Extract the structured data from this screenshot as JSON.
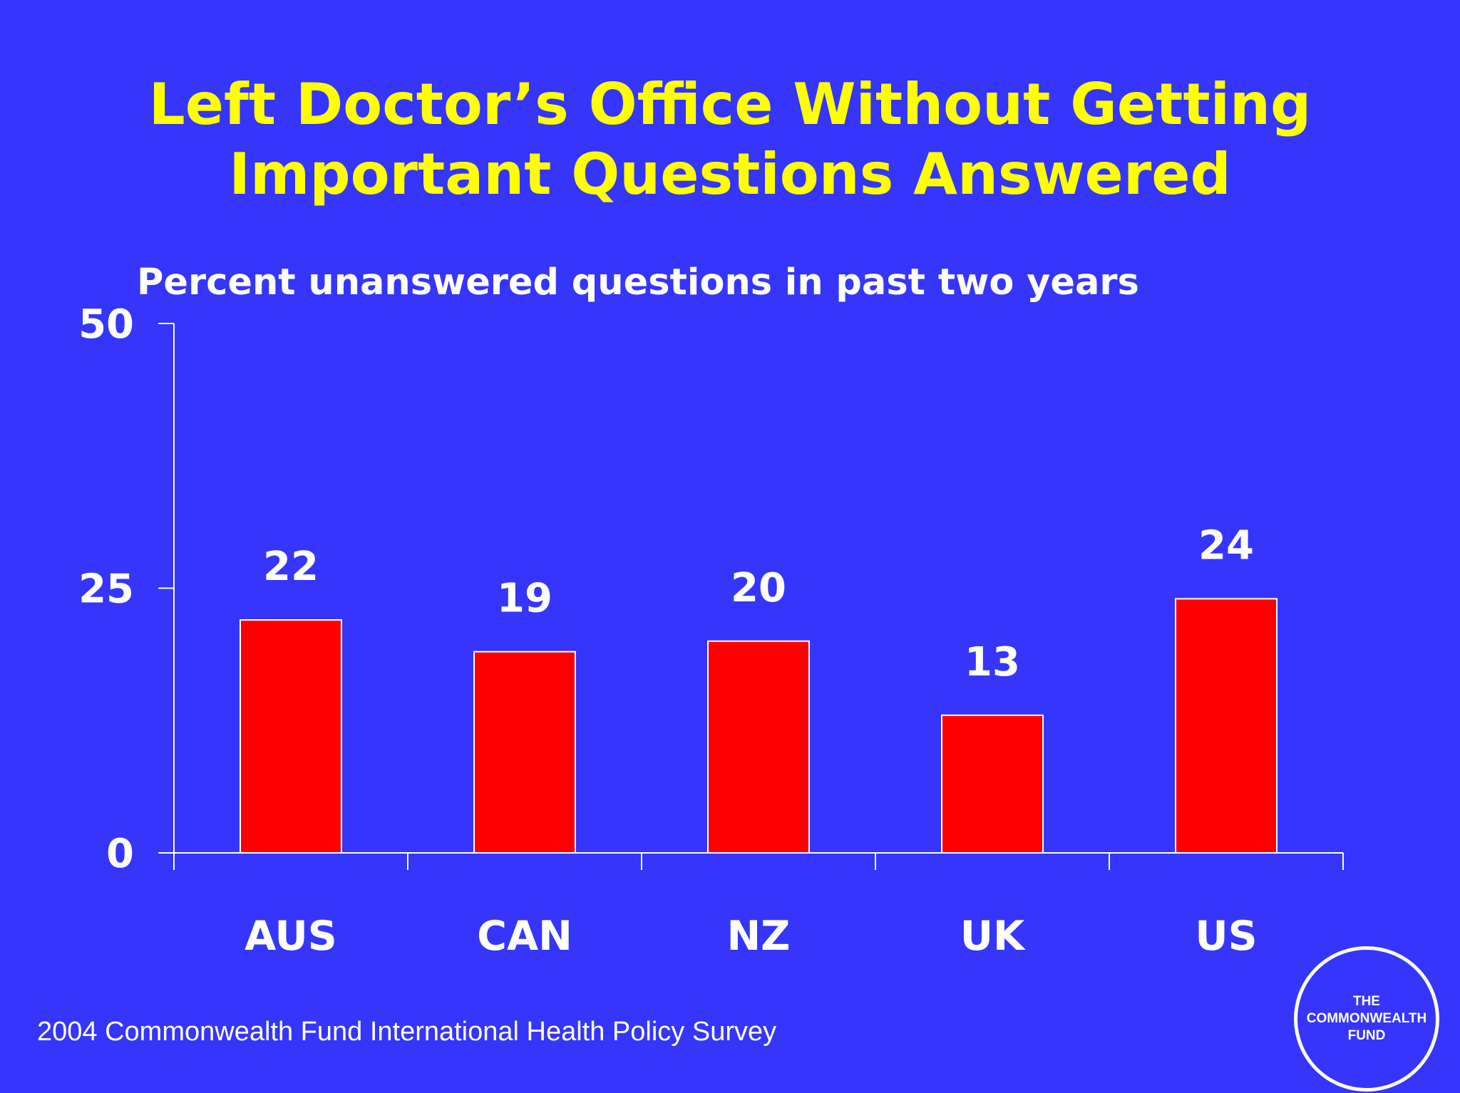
{
  "slide": {
    "title_line1": "Left Doctor’s Office Without Getting",
    "title_line2": "Important Questions Answered",
    "source": "2004 Commonwealth Fund International Health Policy Survey",
    "logo_line1": "THE",
    "logo_line2": "COMMONWEALTH",
    "logo_line3": "FUND"
  },
  "colors": {
    "background": "#3535fb",
    "title": "#ffff00",
    "bar": "#ff0000",
    "text": "#ffffff"
  },
  "chart_data": {
    "type": "bar",
    "title": "Left Doctor’s Office Without Getting Important Questions Answered",
    "ylabel": "Percent unanswered questions in past two years",
    "xlabel": "",
    "categories": [
      "AUS",
      "CAN",
      "NZ",
      "UK",
      "US"
    ],
    "values": [
      22,
      19,
      20,
      13,
      24
    ],
    "ylim": [
      0,
      50
    ],
    "yticks": [
      0,
      25,
      50
    ],
    "grid": false,
    "legend": "none",
    "data_labels": true
  }
}
